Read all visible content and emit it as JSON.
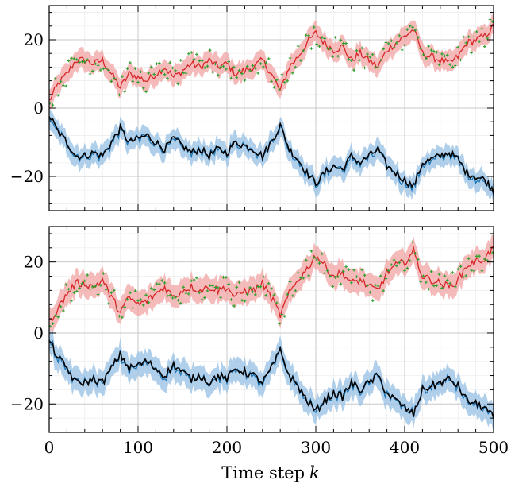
{
  "chart_data": {
    "type": "line",
    "xlabel": "Time step",
    "xlabel_var": "k",
    "xlim": [
      0,
      500
    ],
    "x_ticks": [
      0,
      100,
      200,
      300,
      400,
      500
    ],
    "x_tick_labels": [
      "0",
      "100",
      "200",
      "300",
      "400",
      "500"
    ],
    "grid": true,
    "minor_grid": true,
    "colors": {
      "upper_mean": "#d62728",
      "upper_band": "#f2a4a4",
      "measurements": "#2ca02c",
      "lower_truth": "#000000",
      "lower_mean": "#1f77b4",
      "lower_band": "#9cc3e6",
      "grid": "#c8c8c8",
      "minor_grid": "#ececec"
    },
    "panels": [
      {
        "ylim": [
          -30,
          30
        ],
        "y_ticks": [
          -20,
          0,
          20
        ],
        "y_tick_labels": [
          "−20",
          "0",
          "20"
        ],
        "upper_series": {
          "x": [
            0,
            10,
            20,
            30,
            40,
            50,
            60,
            70,
            80,
            90,
            100,
            110,
            120,
            130,
            140,
            150,
            160,
            170,
            180,
            190,
            200,
            210,
            220,
            230,
            240,
            250,
            260,
            270,
            280,
            290,
            300,
            310,
            320,
            330,
            340,
            350,
            360,
            370,
            380,
            390,
            400,
            410,
            420,
            430,
            440,
            450,
            460,
            470,
            480,
            490,
            500
          ],
          "mean": [
            2,
            7,
            10,
            14,
            14,
            13,
            14,
            10,
            6,
            10,
            9,
            8,
            10,
            12,
            9,
            11,
            13,
            12,
            14,
            12,
            13,
            10,
            11,
            12,
            14,
            10,
            5,
            12,
            15,
            19,
            22,
            19,
            17,
            18,
            14,
            16,
            14,
            12,
            17,
            19,
            21,
            23,
            16,
            15,
            14,
            13,
            15,
            19,
            20,
            21,
            24
          ],
          "band_halfwidth": 2.5
        },
        "lower_series": {
          "x": [
            0,
            10,
            20,
            30,
            40,
            50,
            60,
            70,
            80,
            90,
            100,
            110,
            120,
            130,
            140,
            150,
            160,
            170,
            180,
            190,
            200,
            210,
            220,
            230,
            240,
            250,
            260,
            270,
            280,
            290,
            300,
            310,
            320,
            330,
            340,
            350,
            360,
            370,
            380,
            390,
            400,
            410,
            420,
            430,
            440,
            450,
            460,
            470,
            480,
            490,
            500
          ],
          "truth": [
            -2,
            -7,
            -10,
            -14,
            -14,
            -13,
            -14,
            -10,
            -6,
            -10,
            -9,
            -8,
            -10,
            -12,
            -9,
            -11,
            -13,
            -12,
            -14,
            -12,
            -13,
            -10,
            -11,
            -12,
            -14,
            -10,
            -5,
            -12,
            -15,
            -19,
            -22,
            -19,
            -17,
            -18,
            -14,
            -16,
            -14,
            -12,
            -17,
            -19,
            -21,
            -23,
            -16,
            -15,
            -14,
            -13,
            -15,
            -19,
            -20,
            -21,
            -24
          ],
          "band_halfwidth": 2.5
        }
      },
      {
        "ylim": [
          -28,
          30
        ],
        "y_ticks": [
          -20,
          0,
          20
        ],
        "y_tick_labels": [
          "−20",
          "0",
          "20"
        ],
        "upper_series": {
          "x": [
            0,
            10,
            20,
            30,
            40,
            50,
            60,
            70,
            80,
            90,
            100,
            110,
            120,
            130,
            140,
            150,
            160,
            170,
            180,
            190,
            200,
            210,
            220,
            230,
            240,
            250,
            260,
            270,
            280,
            290,
            300,
            310,
            320,
            330,
            340,
            350,
            360,
            370,
            380,
            390,
            400,
            410,
            420,
            430,
            440,
            450,
            460,
            470,
            480,
            490,
            500
          ],
          "mean": [
            3,
            7,
            11,
            14,
            14,
            13,
            15,
            10,
            6,
            10,
            8,
            9,
            11,
            13,
            10,
            12,
            13,
            12,
            13,
            12,
            13,
            10,
            12,
            12,
            14,
            10,
            5,
            11,
            15,
            18,
            22,
            19,
            16,
            17,
            14,
            15,
            13,
            12,
            17,
            19,
            20,
            23,
            16,
            15,
            14,
            13,
            15,
            19,
            20,
            21,
            24
          ],
          "band_halfwidth": 3
        },
        "lower_series": {
          "x": [
            0,
            10,
            20,
            30,
            40,
            50,
            60,
            70,
            80,
            90,
            100,
            110,
            120,
            130,
            140,
            150,
            160,
            170,
            180,
            190,
            200,
            210,
            220,
            230,
            240,
            250,
            260,
            270,
            280,
            290,
            300,
            310,
            320,
            330,
            340,
            350,
            360,
            370,
            380,
            390,
            400,
            410,
            420,
            430,
            440,
            450,
            460,
            470,
            480,
            490,
            500
          ],
          "truth": [
            -2,
            -7,
            -10,
            -14,
            -14,
            -13,
            -14,
            -10,
            -6,
            -10,
            -9,
            -8,
            -10,
            -12,
            -9,
            -11,
            -13,
            -12,
            -14,
            -12,
            -13,
            -10,
            -11,
            -12,
            -14,
            -10,
            -5,
            -12,
            -15,
            -19,
            -22,
            -19,
            -17,
            -18,
            -14,
            -16,
            -14,
            -12,
            -17,
            -19,
            -21,
            -23,
            -16,
            -15,
            -14,
            -13,
            -15,
            -19,
            -20,
            -21,
            -24
          ],
          "band_halfwidth": 3
        }
      }
    ]
  }
}
